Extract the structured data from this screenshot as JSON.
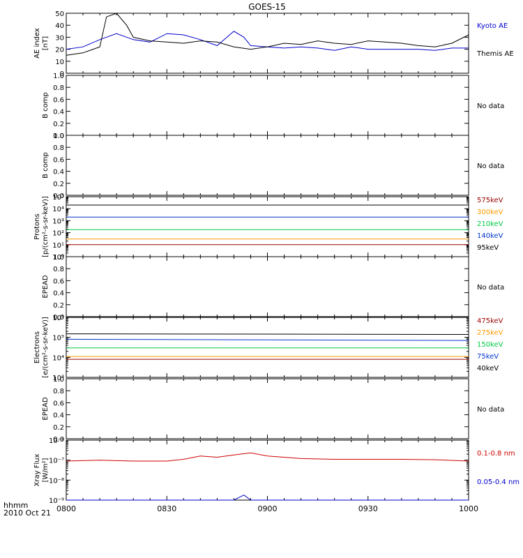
{
  "title": "GOES-15",
  "time_axis": {
    "label": "hhmm",
    "date": "2010 Oct 21",
    "ticks": [
      "0800",
      "0830",
      "0900",
      "0930",
      "1000"
    ]
  },
  "chart_data": [
    {
      "type": "line",
      "ylabel": [
        "AE index",
        "[nT]"
      ],
      "ylim": [
        0,
        50
      ],
      "yticks": [
        "0",
        "10",
        "20",
        "30",
        "40",
        "50"
      ],
      "xlim": [
        "0800",
        "1000"
      ],
      "series": [
        {
          "name": "Kyoto AE",
          "color": "#0000cc",
          "x": [
            "0800",
            "0805",
            "0810",
            "0815",
            "0820",
            "0825",
            "0830",
            "0835",
            "0840",
            "0845",
            "0850",
            "0853",
            "0855",
            "0900",
            "0905",
            "0910",
            "0915",
            "0920",
            "0925",
            "0930",
            "0935",
            "0940",
            "0945",
            "0950",
            "0955",
            "1000"
          ],
          "y": [
            20,
            22,
            28,
            33,
            28,
            26,
            33,
            32,
            28,
            23,
            35,
            30,
            23,
            22,
            21,
            22,
            21,
            19,
            22,
            20,
            20,
            20,
            20,
            19,
            21,
            21
          ]
        },
        {
          "name": "Themis AE",
          "color": "#000000",
          "x": [
            "0800",
            "0805",
            "0810",
            "0812",
            "0815",
            "0818",
            "0820",
            "0825",
            "0830",
            "0835",
            "0840",
            "0845",
            "0850",
            "0855",
            "0900",
            "0905",
            "0910",
            "0915",
            "0920",
            "0925",
            "0930",
            "0935",
            "0940",
            "0945",
            "0950",
            "0955",
            "1000"
          ],
          "y": [
            15,
            17,
            22,
            47,
            50,
            40,
            30,
            27,
            26,
            25,
            27,
            26,
            22,
            20,
            22,
            25,
            24,
            27,
            25,
            24,
            27,
            26,
            25,
            23,
            22,
            25,
            32
          ]
        }
      ]
    },
    {
      "type": "line",
      "ylabel": [
        "B comp"
      ],
      "ylim": [
        0,
        1
      ],
      "yticks": [
        "0.0",
        "0.2",
        "0.4",
        "0.6",
        "0.8",
        "1.0"
      ],
      "note": "No data",
      "series": []
    },
    {
      "type": "line",
      "ylabel": [
        "B comp"
      ],
      "ylim": [
        0,
        1
      ],
      "yticks": [
        "0.0",
        "0.2",
        "0.4",
        "0.6",
        "0.8",
        "1.0"
      ],
      "note": "No data",
      "series": []
    },
    {
      "type": "line",
      "ylabel": [
        "Protons",
        "[p/(cm²-s-sr-keV)]"
      ],
      "yscale": "log",
      "ylim_exp": [
        0,
        5
      ],
      "yticks": [
        "10⁰",
        "10¹",
        "10²",
        "10³",
        "10⁴",
        "10⁵"
      ],
      "series": [
        {
          "name": "575keV",
          "color": "#990000",
          "x": [
            "0800",
            "1000"
          ],
          "y": [
            10,
            10
          ]
        },
        {
          "name": "300keV",
          "color": "#ff9900",
          "x": [
            "0800",
            "1000"
          ],
          "y": [
            30,
            30
          ]
        },
        {
          "name": "210keV",
          "color": "#00cc44",
          "x": [
            "0800",
            "1000"
          ],
          "y": [
            180,
            180
          ]
        },
        {
          "name": "140keV",
          "color": "#0033cc",
          "x": [
            "0800",
            "1000"
          ],
          "y": [
            2000,
            2000
          ]
        },
        {
          "name": "95keV",
          "color": "#000000",
          "x": [
            "0800",
            "1000"
          ],
          "y": [
            20000,
            20000
          ]
        }
      ]
    },
    {
      "type": "line",
      "ylabel": [
        "EPEAD"
      ],
      "ylim": [
        0,
        1
      ],
      "yticks": [
        "0.0",
        "0.2",
        "0.4",
        "0.6",
        "0.8",
        "1.0"
      ],
      "note": "No data",
      "series": []
    },
    {
      "type": "line",
      "ylabel": [
        "Electrons",
        "[e/(cm²-s-sr-keV)]"
      ],
      "yscale": "log",
      "ylim_exp": [
        3,
        6
      ],
      "yticks": [
        "10³",
        "10⁴",
        "10⁵",
        "10⁶"
      ],
      "series": [
        {
          "name": "475keV",
          "color": "#990000",
          "x": [
            "0800",
            "1000"
          ],
          "y": [
            8000,
            8000
          ]
        },
        {
          "name": "275keV",
          "color": "#ff9900",
          "x": [
            "0800",
            "1000"
          ],
          "y": [
            11000,
            11000
          ]
        },
        {
          "name": "150keV",
          "color": "#00cc44",
          "x": [
            "0800",
            "1000"
          ],
          "y": [
            30000,
            30000
          ]
        },
        {
          "name": "75keV",
          "color": "#0033cc",
          "x": [
            "0800",
            "1000"
          ],
          "y": [
            80000,
            70000
          ]
        },
        {
          "name": "40keV",
          "color": "#000000",
          "x": [
            "0800",
            "1000"
          ],
          "y": [
            150000,
            140000
          ]
        }
      ]
    },
    {
      "type": "line",
      "ylabel": [
        "EPEAD"
      ],
      "ylim": [
        0,
        1
      ],
      "yticks": [
        "0.0",
        "0.2",
        "0.4",
        "0.6",
        "0.8",
        "1.0"
      ],
      "note": "No data",
      "series": []
    },
    {
      "type": "line",
      "ylabel": [
        "Xray Flux",
        "[W/m²]"
      ],
      "yscale": "log",
      "ylim_exp": [
        -9,
        -6
      ],
      "yticks": [
        "10⁻⁹",
        "10⁻⁸",
        "10⁻⁷",
        "10⁻⁶"
      ],
      "series": [
        {
          "name": "0.1-0.8 nm",
          "color": "#cc0000",
          "x": [
            "0800",
            "0810",
            "0820",
            "0830",
            "0835",
            "0840",
            "0845",
            "0850",
            "0855",
            "0900",
            "0910",
            "0920",
            "0930",
            "0940",
            "0950",
            "1000"
          ],
          "y": [
            9e-08,
            1e-07,
            9e-08,
            9e-08,
            1.1e-07,
            1.6e-07,
            1.4e-07,
            1.8e-07,
            2.3e-07,
            1.6e-07,
            1.2e-07,
            1.1e-07,
            1.1e-07,
            1.1e-07,
            1.05e-07,
            9e-08
          ]
        },
        {
          "name": "0.05-0.4 nm",
          "color": "#0000cc",
          "x": [
            "0800",
            "0850",
            "0853",
            "0855",
            "0900",
            "1000"
          ],
          "y": [
            1e-09,
            1e-09,
            1.8e-09,
            1e-09,
            1e-09,
            1e-09
          ]
        }
      ]
    }
  ]
}
